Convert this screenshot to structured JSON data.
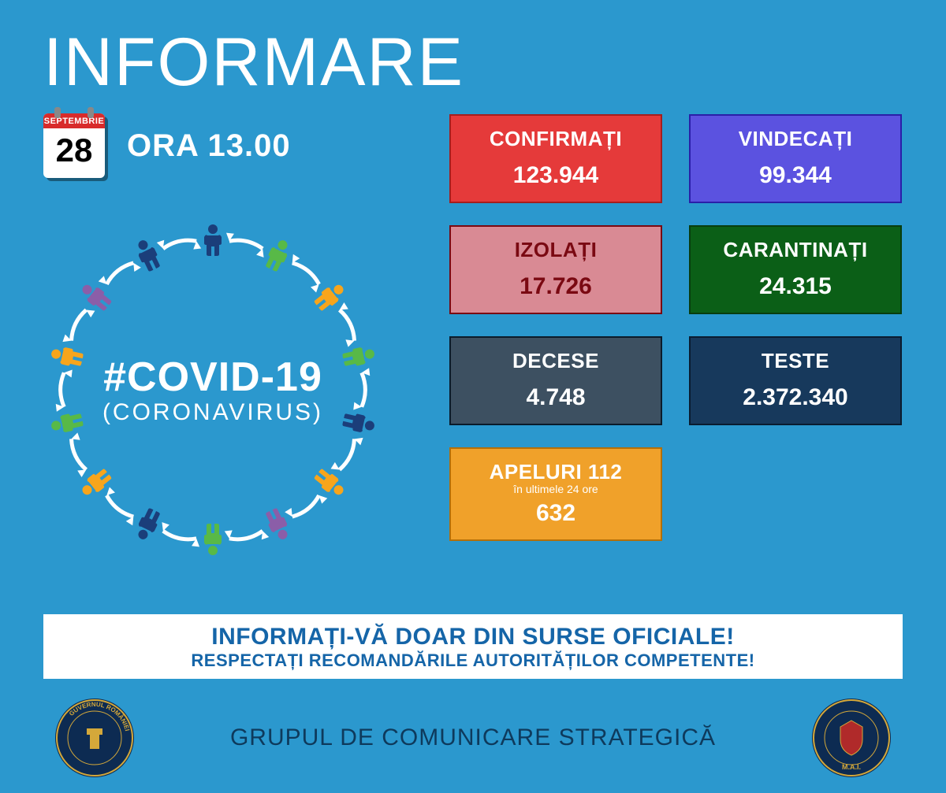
{
  "title": "INFORMARE",
  "date": {
    "month": "SEPTEMBRIE",
    "day": "28"
  },
  "time": "ORA 13.00",
  "circle": {
    "hashtag": "#COVID-19",
    "subtitle": "(CORONAVIRUS)",
    "figure_colors": [
      "#1b3e7a",
      "#58b947",
      "#f7a51c",
      "#58b947",
      "#1b3e7a",
      "#f7a51c",
      "#8b5ea8",
      "#58b947",
      "#1b3e7a",
      "#f7a51c",
      "#58b947",
      "#f7a51c",
      "#8b5ea8",
      "#1b3e7a"
    ],
    "arrow_color": "#ffffff"
  },
  "stats": {
    "confirmed": {
      "label": "CONFIRMAȚI",
      "value": "123.944",
      "bg": "#e53a3a",
      "border": "#a51e1e",
      "text": "#ffffff"
    },
    "recovered": {
      "label": "VINDECAȚI",
      "value": "99.344",
      "bg": "#5b52e0",
      "border": "#2a1fa8",
      "text": "#ffffff"
    },
    "isolated": {
      "label": "IZOLAȚI",
      "value": "17.726",
      "bg": "#d98a94",
      "border": "#7a0912",
      "text": "#7a0912"
    },
    "quarantined": {
      "label": "CARANTINAȚI",
      "value": "24.315",
      "bg": "#0b5f17",
      "border": "#083d0f",
      "text": "#ffffff"
    },
    "deaths": {
      "label": "DECESE",
      "value": "4.748",
      "bg": "#3d5061",
      "border": "#0b1b2a",
      "text": "#ffffff"
    },
    "tests": {
      "label": "TESTE",
      "value": "2.372.340",
      "bg": "#17395c",
      "border": "#0a1c30",
      "text": "#ffffff"
    },
    "calls": {
      "label": "APELURI 112",
      "sublabel": "în ultimele 24 ore",
      "value": "632",
      "bg": "#f0a12a",
      "border": "#b36f09",
      "text": "#ffffff"
    }
  },
  "banner": {
    "line1": "INFORMAȚI-VĂ DOAR DIN SURSE OFICIALE!",
    "line2": "RESPECTAȚI RECOMANDĂRILE AUTORITĂȚILOR COMPETENTE!",
    "bg": "#ffffff",
    "text_color": "#1565a8"
  },
  "footer": {
    "text": "GRUPUL DE COMUNICARE STRATEGICĂ",
    "left_seal_label": "GUVERNUL ROMÂNIEI",
    "right_seal_label": "M.A.I."
  },
  "colors": {
    "page_bg": "#2b98ce",
    "title_color": "#ffffff"
  }
}
